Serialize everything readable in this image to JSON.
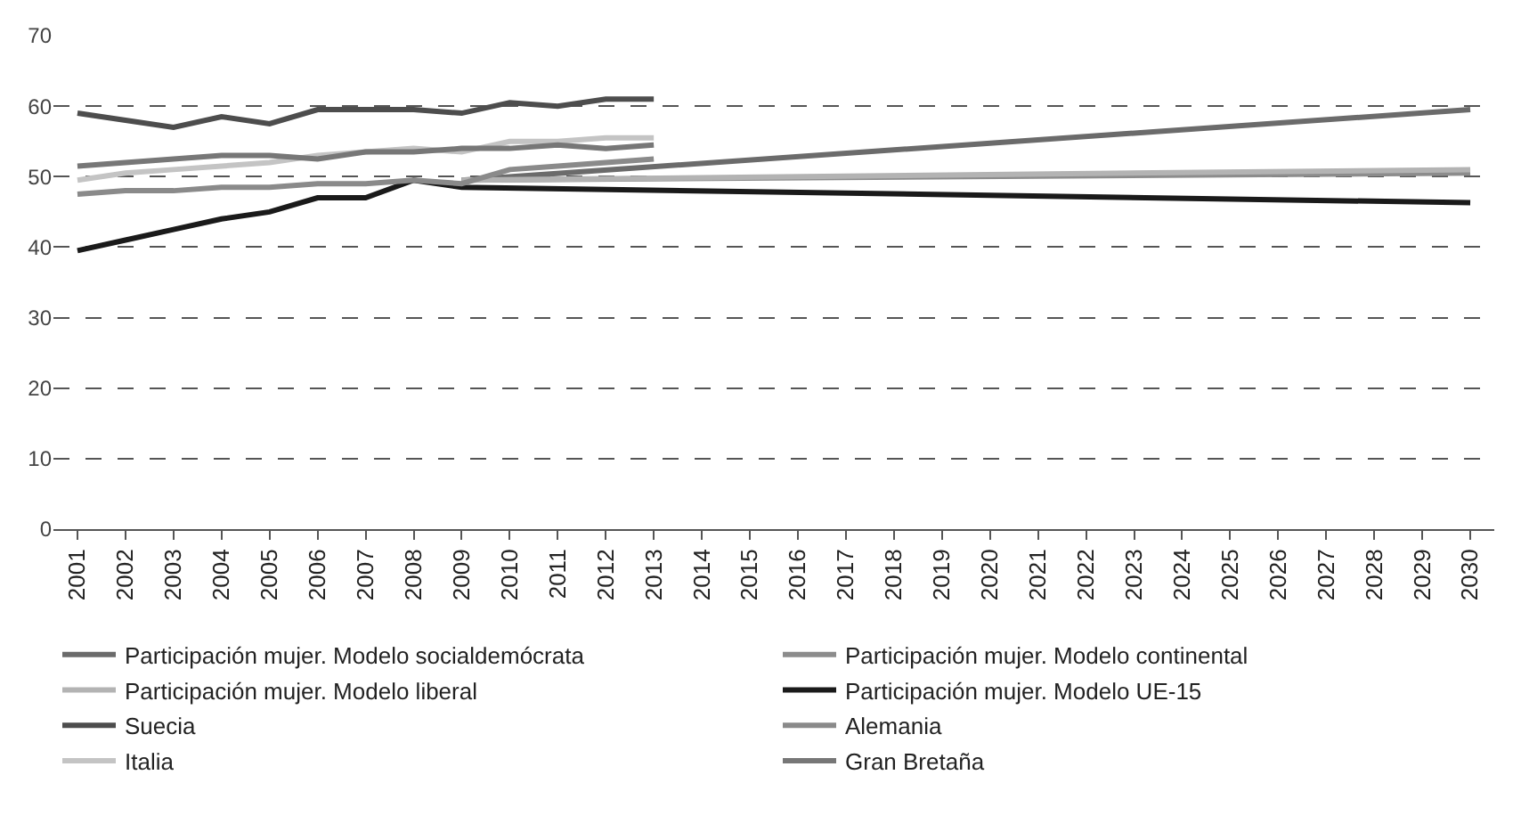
{
  "chart_data": {
    "type": "line",
    "xlim": [
      2000.5,
      2030.5
    ],
    "xticks": [
      2001,
      2002,
      2003,
      2004,
      2005,
      2006,
      2007,
      2008,
      2009,
      2010,
      2011,
      2012,
      2013,
      2014,
      2015,
      2016,
      2017,
      2018,
      2019,
      2020,
      2021,
      2022,
      2023,
      2024,
      2025,
      2026,
      2027,
      2028,
      2029,
      2030
    ],
    "ylim": [
      0,
      70
    ],
    "yticks": [
      0,
      10,
      20,
      30,
      40,
      50,
      60,
      70
    ],
    "grid": "y",
    "legend": "bottom",
    "marker": "none",
    "line_style": "solid",
    "series": [
      {
        "name": "Participación mujer. Modelo socialdemócrata",
        "color": "#6b6b6b",
        "x": [
          2009,
          2030
        ],
        "values": [
          49.5,
          59.5
        ]
      },
      {
        "name": "Participación mujer. Modelo continental",
        "color": "#8c8c8c",
        "x": [
          2009,
          2030
        ],
        "values": [
          49.5,
          50.5
        ]
      },
      {
        "name": "Participación mujer. Modelo liberal",
        "color": "#b3b3b3",
        "x": [
          2009,
          2030
        ],
        "values": [
          49.5,
          51
        ]
      },
      {
        "name": "Participación mujer. Modelo UE-15",
        "color": "#1a1a1a",
        "x": [
          2001,
          2002,
          2003,
          2004,
          2005,
          2006,
          2007,
          2008,
          2009,
          2030
        ],
        "values": [
          39.5,
          41,
          42.5,
          44,
          45,
          47,
          47,
          49.5,
          48.5,
          46.3
        ]
      },
      {
        "name": "Suecia",
        "color": "#4d4d4d",
        "x": [
          2001,
          2002,
          2003,
          2004,
          2005,
          2006,
          2007,
          2008,
          2009,
          2010,
          2011,
          2012,
          2013
        ],
        "values": [
          59,
          58,
          57,
          58.5,
          57.5,
          59.5,
          59.5,
          59.5,
          59,
          60.5,
          60,
          61,
          61
        ]
      },
      {
        "name": "Alemania",
        "color": "#8a8a8a",
        "x": [
          2001,
          2002,
          2003,
          2004,
          2005,
          2006,
          2007,
          2008,
          2009,
          2010,
          2011,
          2012,
          2013
        ],
        "values": [
          47.5,
          48,
          48,
          48.5,
          48.5,
          49,
          49,
          49.5,
          49,
          51,
          51.5,
          52,
          52.5
        ]
      },
      {
        "name": "Italia",
        "color": "#c4c4c4",
        "x": [
          2001,
          2002,
          2003,
          2004,
          2005,
          2006,
          2007,
          2008,
          2009,
          2010,
          2011,
          2012,
          2013
        ],
        "values": [
          49.5,
          50.5,
          51,
          51.5,
          52,
          53,
          53.5,
          54,
          53.5,
          55,
          55,
          55.5,
          55.5
        ]
      },
      {
        "name": "Gran Bretaña",
        "color": "#777777",
        "x": [
          2001,
          2002,
          2003,
          2004,
          2005,
          2006,
          2007,
          2008,
          2009,
          2010,
          2011,
          2012,
          2013
        ],
        "values": [
          51.5,
          52,
          52.5,
          53,
          53,
          52.5,
          53.5,
          53.5,
          54,
          54,
          54.5,
          54,
          54.5
        ]
      }
    ]
  }
}
